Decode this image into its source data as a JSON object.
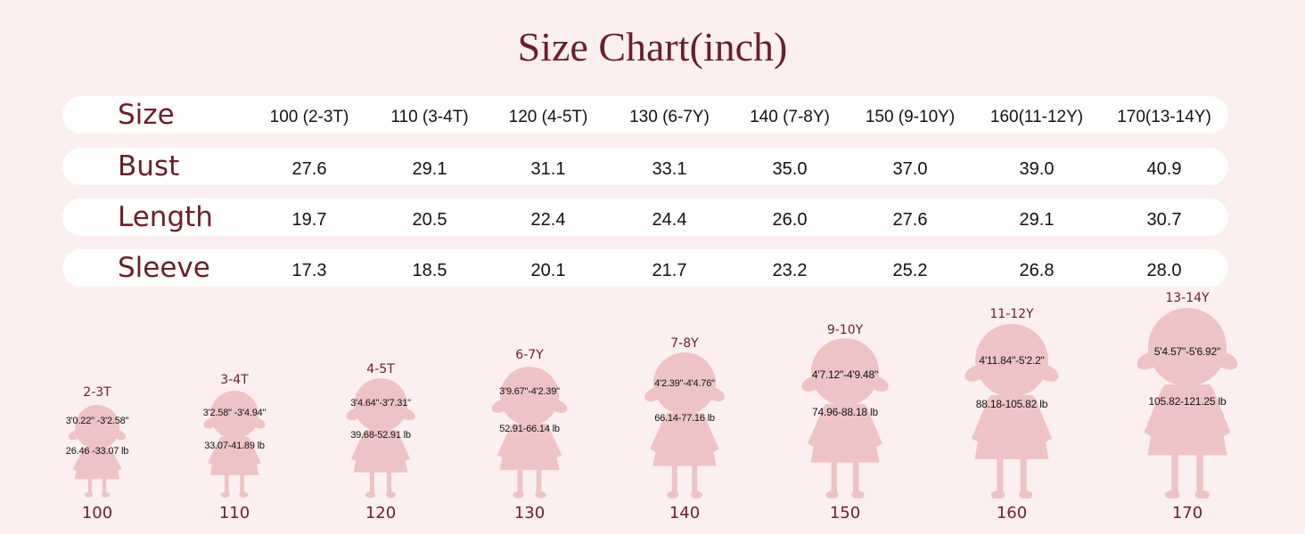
{
  "title": "Size Chart(inch)",
  "colors": {
    "background": "#fcefef",
    "accent": "#6b1f28",
    "silhouette": "#eec3c6",
    "row": "#ffffff"
  },
  "table": {
    "rows": [
      {
        "label": "Size",
        "cells": [
          "100 (2-3T)",
          "110 (3-4T)",
          "120 (4-5T)",
          "130 (6-7Y)",
          "140 (7-8Y)",
          "150 (9-10Y)",
          "160(11-12Y)",
          "170(13-14Y)"
        ]
      },
      {
        "label": "Bust",
        "cells": [
          "27.6",
          "29.1",
          "31.1",
          "33.1",
          "35.0",
          "37.0",
          "39.0",
          "40.9"
        ]
      },
      {
        "label": "Length",
        "cells": [
          "19.7",
          "20.5",
          "22.4",
          "24.4",
          "26.0",
          "27.6",
          "29.1",
          "30.7"
        ]
      },
      {
        "label": "Sleeve",
        "cells": [
          "17.3",
          "18.5",
          "20.1",
          "21.7",
          "23.2",
          "25.2",
          "26.8",
          "28.0"
        ]
      }
    ]
  },
  "figures": [
    {
      "age": "2-3T",
      "height": "3'0.22\" -3'2.58\"",
      "weight": "26.46 -33.07 lb",
      "size": "100",
      "icon": "girl-silhouette-icon"
    },
    {
      "age": "3-4T",
      "height": "3'2.58\" -3'4.94\"",
      "weight": "33.07-41.89 lb",
      "size": "110",
      "icon": "girl-silhouette-icon"
    },
    {
      "age": "4-5T",
      "height": "3'4.64\"-3'7.31\"",
      "weight": "39.68-52.91 lb",
      "size": "120",
      "icon": "girl-silhouette-icon"
    },
    {
      "age": "6-7Y",
      "height": "3'9.67\"-4'2.39\"",
      "weight": "52.91-66.14 lb",
      "size": "130",
      "icon": "girl-silhouette-icon"
    },
    {
      "age": "7-8Y",
      "height": "4'2.39\"-4'4.76\"",
      "weight": "66.14-77.16 lb",
      "size": "140",
      "icon": "girl-silhouette-icon"
    },
    {
      "age": "9-10Y",
      "height": "4'7.12\"-4'9.48\"",
      "weight": "74.96-88.18 lb",
      "size": "150",
      "icon": "girl-silhouette-icon"
    },
    {
      "age": "11-12Y",
      "height": "4'11.84\"-5'2.2\"",
      "weight": "88.18-105.82 lb",
      "size": "160",
      "icon": "girl-silhouette-icon"
    },
    {
      "age": "13-14Y",
      "height": "5'4.57\"-5'6.92\"",
      "weight": "105.82-121.25 lb",
      "size": "170",
      "icon": "girl-silhouette-icon"
    }
  ]
}
